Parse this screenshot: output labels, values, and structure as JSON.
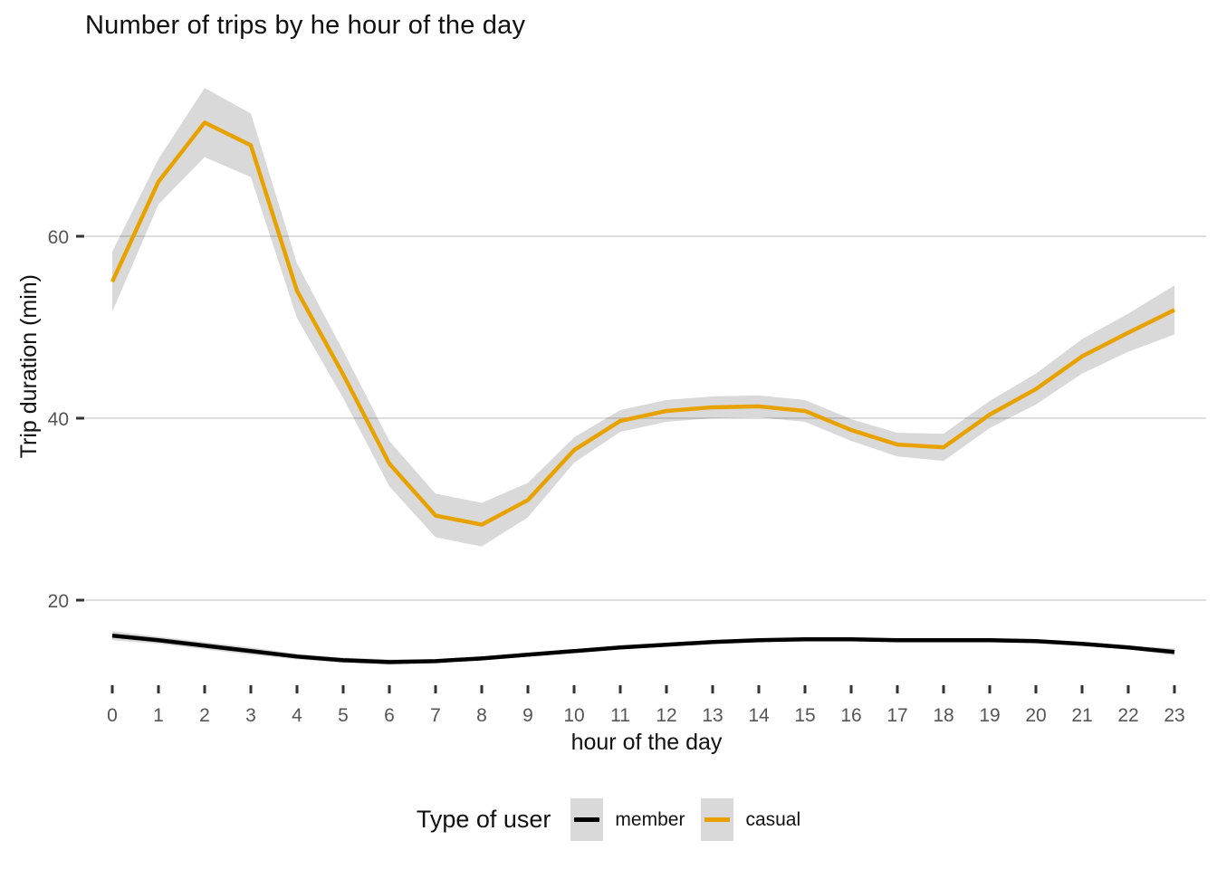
{
  "title": "Number of trips by he hour of the day",
  "axes": {
    "x_label": "hour of the day",
    "y_label": "Trip duration (min)"
  },
  "legend": {
    "title": "Type of user",
    "position": "bottom",
    "entries": [
      "member",
      "casual"
    ]
  },
  "colors": {
    "member": "#000000",
    "casual": "#E8A200",
    "band": "#000000",
    "band_opacity": 0.15,
    "gridline": "#DEDEDE",
    "tick_mark": "#333333",
    "axis_text": "#555555",
    "background": "#ffffff"
  },
  "chart_data": {
    "type": "line",
    "title": "Number of trips by he hour of the day",
    "xlabel": "hour of the day",
    "ylabel": "Trip duration (min)",
    "x": [
      0,
      1,
      2,
      3,
      4,
      5,
      6,
      7,
      8,
      9,
      10,
      11,
      12,
      13,
      14,
      15,
      16,
      17,
      18,
      19,
      20,
      21,
      22,
      23
    ],
    "x_ticks": [
      0,
      1,
      2,
      3,
      4,
      5,
      6,
      7,
      8,
      9,
      10,
      11,
      12,
      13,
      14,
      15,
      16,
      17,
      18,
      19,
      20,
      21,
      22,
      23
    ],
    "y_ticks": [
      20,
      40,
      60
    ],
    "ylim": [
      12,
      78
    ],
    "grid": "horizontal-major-only",
    "legend_position": "bottom",
    "series": [
      {
        "name": "member",
        "color": "#000000",
        "values": [
          16.1,
          15.6,
          15.0,
          14.4,
          13.8,
          13.4,
          13.2,
          13.3,
          13.6,
          14.0,
          14.4,
          14.8,
          15.1,
          15.4,
          15.6,
          15.7,
          15.7,
          15.6,
          15.6,
          15.6,
          15.5,
          15.2,
          14.8,
          14.3
        ],
        "ci_upper": [
          16.6,
          16.0,
          15.4,
          14.8,
          14.1,
          13.7,
          13.5,
          13.5,
          13.8,
          14.2,
          14.6,
          15.0,
          15.3,
          15.6,
          15.8,
          15.9,
          15.9,
          15.8,
          15.8,
          15.8,
          15.7,
          15.4,
          15.0,
          14.7
        ],
        "ci_lower": [
          15.6,
          15.2,
          14.6,
          14.0,
          13.5,
          13.1,
          12.9,
          13.1,
          13.4,
          13.8,
          14.2,
          14.6,
          14.9,
          15.2,
          15.4,
          15.5,
          15.5,
          15.4,
          15.4,
          15.4,
          15.3,
          15.0,
          14.6,
          13.9
        ]
      },
      {
        "name": "casual",
        "color": "#E8A200",
        "values": [
          55.0,
          66.0,
          72.5,
          70.0,
          54.0,
          44.8,
          35.0,
          29.3,
          28.3,
          31.0,
          36.5,
          39.7,
          40.8,
          41.2,
          41.3,
          40.8,
          38.7,
          37.1,
          36.8,
          40.4,
          43.2,
          46.8,
          49.4,
          51.9
        ],
        "ci_upper": [
          58.3,
          68.5,
          76.3,
          73.5,
          57.0,
          47.4,
          37.5,
          31.7,
          30.7,
          32.9,
          37.9,
          40.9,
          42.0,
          42.4,
          42.5,
          42.0,
          39.9,
          38.4,
          38.3,
          41.9,
          44.9,
          48.7,
          51.5,
          54.6
        ],
        "ci_lower": [
          51.7,
          63.5,
          68.7,
          66.5,
          51.0,
          42.2,
          32.5,
          26.9,
          25.9,
          29.1,
          35.1,
          38.5,
          39.6,
          40.0,
          40.1,
          39.6,
          37.5,
          35.8,
          35.3,
          38.9,
          41.5,
          44.9,
          47.3,
          49.2
        ]
      }
    ]
  }
}
